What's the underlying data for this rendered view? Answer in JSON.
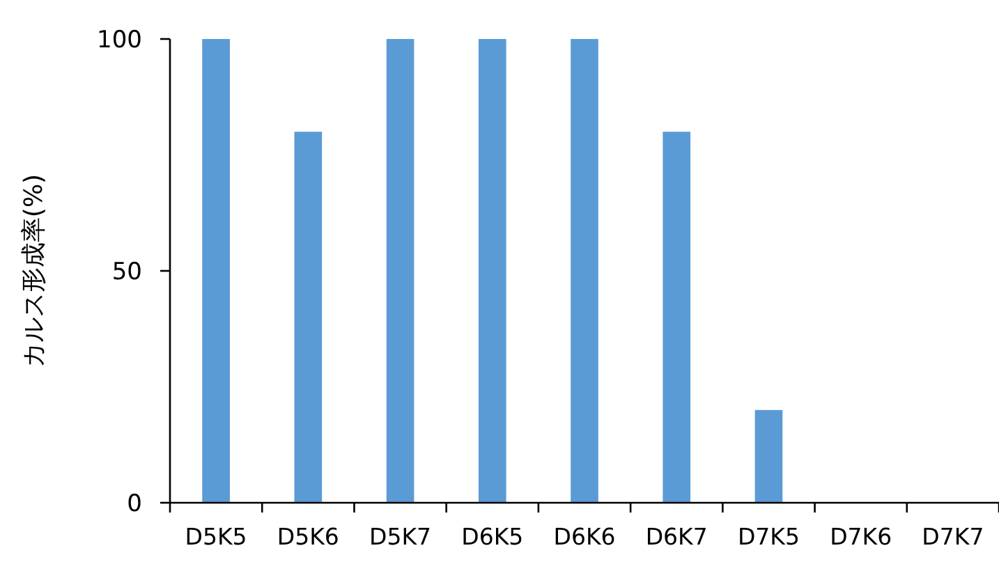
{
  "chart_data": {
    "type": "bar",
    "ylabel": "カルス形成率(%)",
    "categories": [
      "D5K5",
      "D5K6",
      "D5K7",
      "D6K5",
      "D6K6",
      "D6K7",
      "D7K5",
      "D7K6",
      "D7K7"
    ],
    "values": [
      100,
      80,
      100,
      100,
      100,
      80,
      20,
      0,
      0
    ],
    "color": "#5b9bd5",
    "ylim": [
      0,
      100
    ],
    "yticks": [
      0,
      50,
      100
    ]
  }
}
